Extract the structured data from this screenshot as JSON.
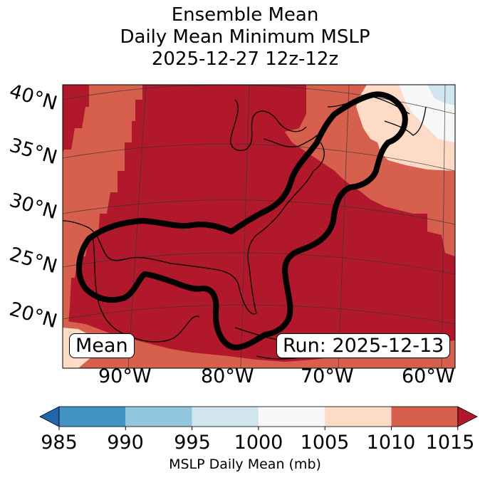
{
  "title": {
    "line1": "Ensemble Mean",
    "line2": "Daily Mean Minimum MSLP",
    "line3": "2025-12-27 12z-12z"
  },
  "map": {
    "lat_labels": [
      "40°N",
      "35°N",
      "30°N",
      "25°N",
      "20°N"
    ],
    "lon_labels": [
      "90°W",
      "80°W",
      "70°W",
      "60°W"
    ],
    "mean_box": "Mean",
    "run_box": "Run: 2025-12-13",
    "colors": {
      "c985": "#4393c3",
      "c990": "#92c5de",
      "c995": "#d1e5f0",
      "c1000": "#f7f7f7",
      "c1005": "#fddbc7",
      "c1010": "#d6604d",
      "c1015": "#b2182b",
      "under": "#2166ac"
    }
  },
  "colorbar": {
    "ticks": [
      "985",
      "990",
      "995",
      "1000",
      "1005",
      "1010",
      "1015"
    ],
    "label": "MSLP Daily Mean (mb)"
  }
}
